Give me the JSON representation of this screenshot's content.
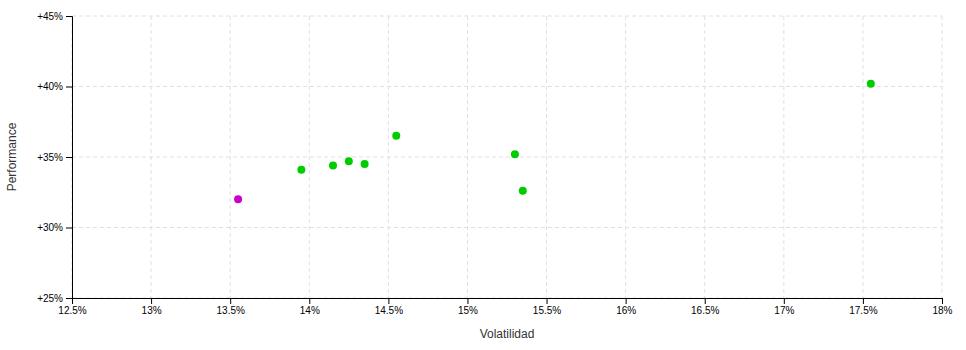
{
  "chart_data": {
    "type": "scatter",
    "xlabel": "Volatilidad",
    "ylabel": "Performance",
    "xlim": [
      0.125,
      0.18
    ],
    "ylim": [
      0.25,
      0.45
    ],
    "xticks": [
      {
        "value": 0.125,
        "label": "12.5%"
      },
      {
        "value": 0.13,
        "label": "13%"
      },
      {
        "value": 0.135,
        "label": "13.5%"
      },
      {
        "value": 0.14,
        "label": "14%"
      },
      {
        "value": 0.145,
        "label": "14.5%"
      },
      {
        "value": 0.15,
        "label": "15%"
      },
      {
        "value": 0.155,
        "label": "15.5%"
      },
      {
        "value": 0.16,
        "label": "16%"
      },
      {
        "value": 0.165,
        "label": "16.5%"
      },
      {
        "value": 0.17,
        "label": "17%"
      },
      {
        "value": 0.175,
        "label": "17.5%"
      },
      {
        "value": 0.18,
        "label": "18%"
      }
    ],
    "yticks": [
      {
        "value": 0.25,
        "label": "+25%"
      },
      {
        "value": 0.3,
        "label": "+30%"
      },
      {
        "value": 0.35,
        "label": "+35%"
      },
      {
        "value": 0.4,
        "label": "+40%"
      },
      {
        "value": 0.45,
        "label": "+45%"
      }
    ],
    "grid": true,
    "series": [
      {
        "color": "#00cc00",
        "x": [
          0.1395,
          0.1415,
          0.1425,
          0.1435,
          0.1455,
          0.153,
          0.1535,
          0.1755
        ],
        "values": [
          0.341,
          0.344,
          0.347,
          0.345,
          0.365,
          0.352,
          0.326,
          0.402
        ]
      },
      {
        "color": "#cc00cc",
        "x": [
          0.1355
        ],
        "values": [
          0.32
        ]
      }
    ]
  }
}
